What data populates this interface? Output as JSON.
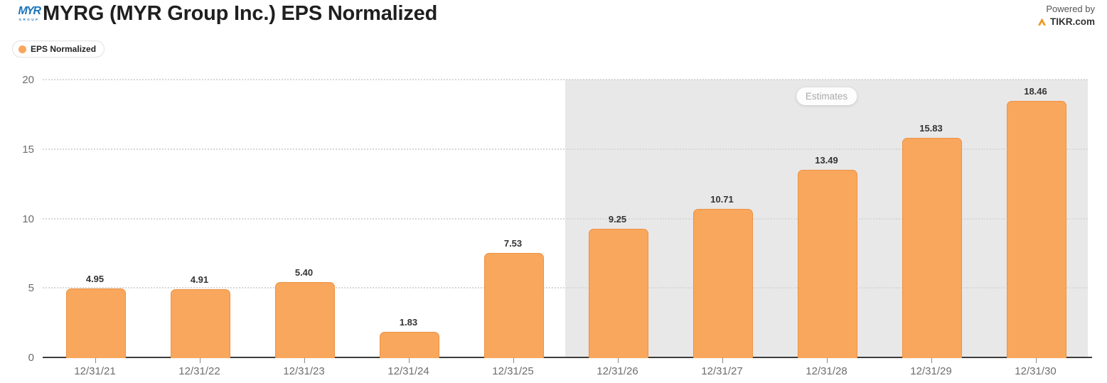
{
  "header": {
    "logo_primary": "MYR",
    "logo_secondary": "GROUP",
    "title": "MYRG (MYR Group Inc.) EPS Normalized",
    "powered_by": "Powered by",
    "brand": "TIKR.com"
  },
  "legend": {
    "label": "EPS Normalized"
  },
  "estimates": {
    "label": "Estimates"
  },
  "colors": {
    "bar_fill": "#F9A75C",
    "bar_border": "#EC9245",
    "estimates_band": "#E8E8E8",
    "accent_orange": "#F0941D",
    "logo_blue": "#1C75BC",
    "axis_line": "#3d3d3d",
    "grid_line": "#d7d7d7"
  },
  "chart_data": {
    "type": "bar",
    "title": "MYRG (MYR Group Inc.) EPS Normalized",
    "series_name": "EPS Normalized",
    "categories": [
      "12/31/21",
      "12/31/22",
      "12/31/23",
      "12/31/24",
      "12/31/25",
      "12/31/26",
      "12/31/27",
      "12/31/28",
      "12/31/29",
      "12/31/30"
    ],
    "values": [
      4.95,
      4.91,
      5.4,
      1.83,
      7.53,
      9.25,
      10.71,
      13.49,
      15.83,
      18.46
    ],
    "value_labels": [
      "4.95",
      "4.91",
      "5.40",
      "1.83",
      "7.53",
      "9.25",
      "10.71",
      "13.49",
      "15.83",
      "18.46"
    ],
    "xlabel": "",
    "ylabel": "",
    "ylim": [
      0,
      20
    ],
    "yticks": [
      0,
      5,
      10,
      15,
      20
    ],
    "grid": "horizontal-dotted",
    "legend_position": "top-left",
    "estimates_from_index": 5,
    "estimates_start_category": "12/31/26"
  }
}
